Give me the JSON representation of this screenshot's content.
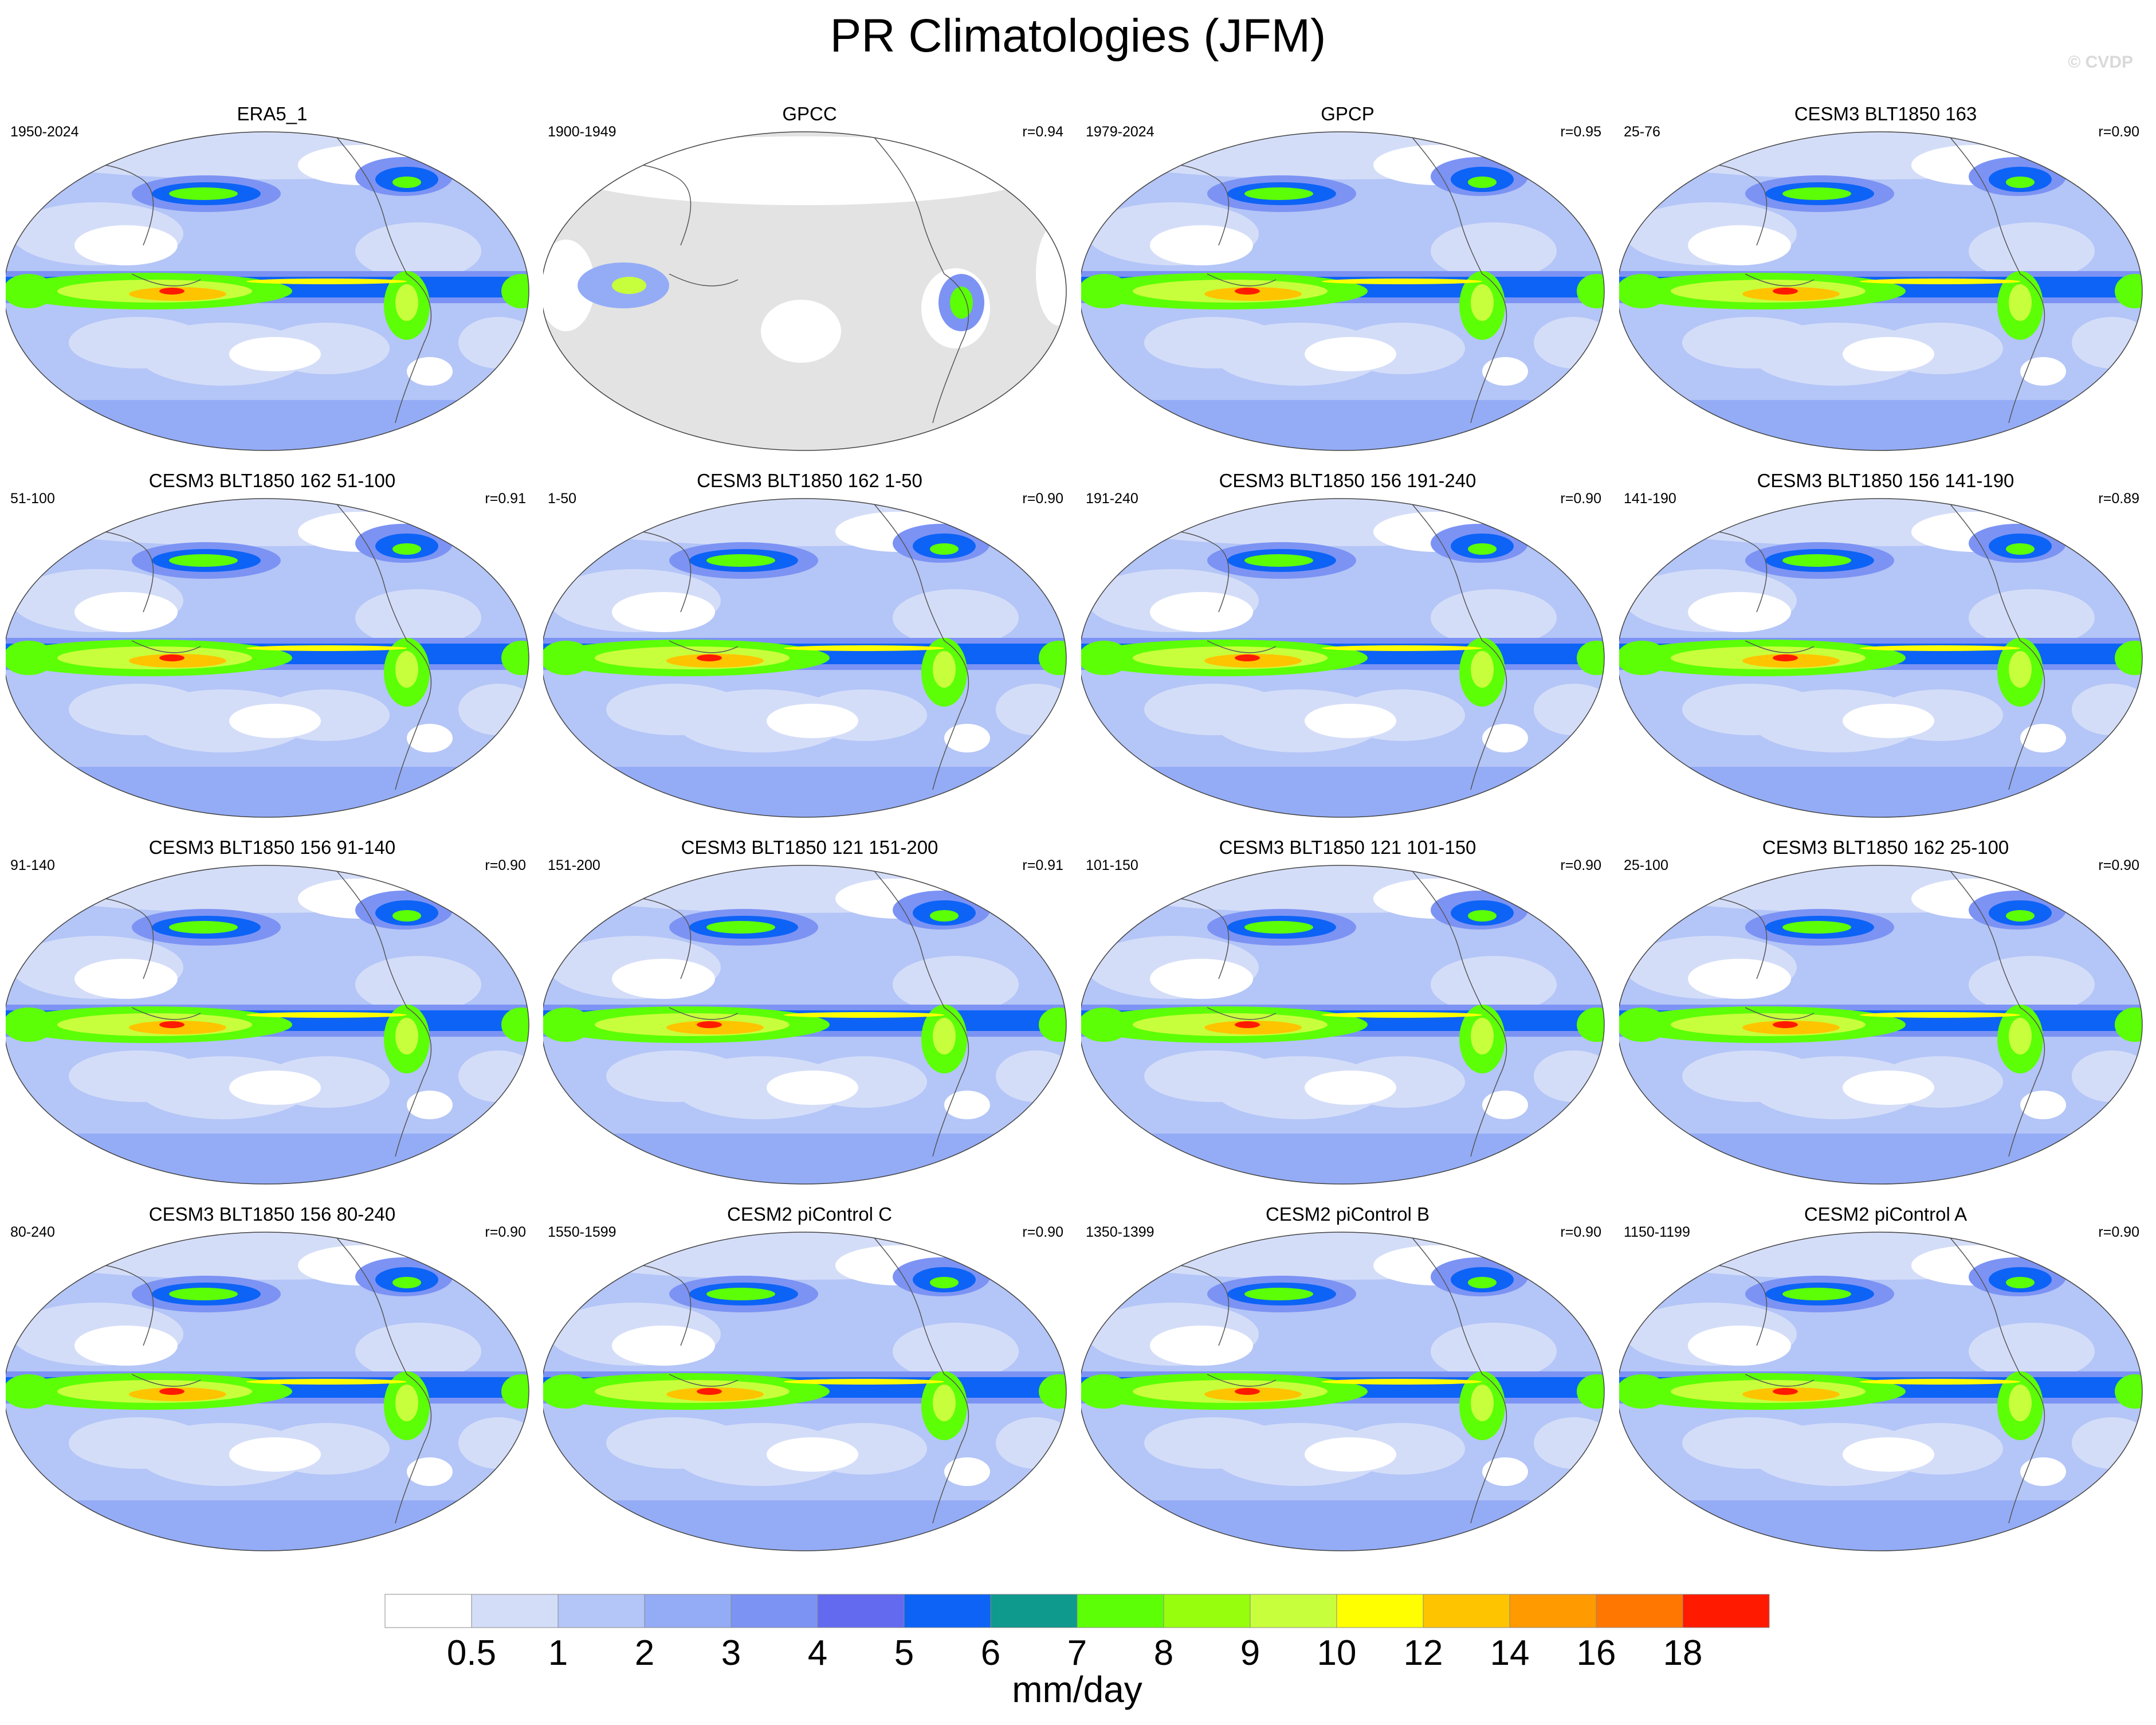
{
  "title": "PR Climatologies (JFM)",
  "watermark": "© CVDP",
  "chart_data": {
    "type": "heatmap",
    "title": "PR Climatologies (JFM)",
    "description_units": "mm/day",
    "panels": [
      {
        "title": "ERA5_1",
        "years": "1950-2024",
        "r": ""
      },
      {
        "title": "GPCC",
        "years": "1900-1949",
        "r": "r=0.94"
      },
      {
        "title": "GPCP",
        "years": "1979-2024",
        "r": "r=0.95"
      },
      {
        "title": "CESM3 BLT1850 163",
        "years": "25-76",
        "r": "r=0.90"
      },
      {
        "title": "CESM3 BLT1850 162 51-100",
        "years": "51-100",
        "r": "r=0.91"
      },
      {
        "title": "CESM3 BLT1850 162 1-50",
        "years": "1-50",
        "r": "r=0.90"
      },
      {
        "title": "CESM3 BLT1850 156 191-240",
        "years": "191-240",
        "r": "r=0.90"
      },
      {
        "title": "CESM3 BLT1850 156 141-190",
        "years": "141-190",
        "r": "r=0.89"
      },
      {
        "title": "CESM3 BLT1850 156 91-140",
        "years": "91-140",
        "r": "r=0.90"
      },
      {
        "title": "CESM3 BLT1850 121 151-200",
        "years": "151-200",
        "r": "r=0.91"
      },
      {
        "title": "CESM3 BLT1850 121 101-150",
        "years": "101-150",
        "r": "r=0.90"
      },
      {
        "title": "CESM3 BLT1850 162 25-100",
        "years": "25-100",
        "r": "r=0.90"
      },
      {
        "title": "CESM3 BLT1850 156 80-240",
        "years": "80-240",
        "r": "r=0.90"
      },
      {
        "title": "CESM2 piControl C",
        "years": "1550-1599",
        "r": "r=0.90"
      },
      {
        "title": "CESM2 piControl B",
        "years": "1350-1399",
        "r": "r=0.90"
      },
      {
        "title": "CESM2 piControl A",
        "years": "1150-1199",
        "r": "r=0.90"
      }
    ],
    "colorbar": {
      "label": "mm/day",
      "levels": [
        "0.5",
        "1",
        "2",
        "3",
        "4",
        "5",
        "6",
        "7",
        "8",
        "9",
        "10",
        "12",
        "14",
        "16",
        "18"
      ],
      "colors": [
        "#ffffff",
        "#d4ddf8",
        "#b4c5f7",
        "#94acf6",
        "#7c93f4",
        "#636af0",
        "#0d63f5",
        "#0f9a8e",
        "#5cff06",
        "#97ff0d",
        "#c8ff3c",
        "#ffff00",
        "#ffc400",
        "#ff9a00",
        "#ff7700",
        "#ff1a00"
      ]
    }
  }
}
